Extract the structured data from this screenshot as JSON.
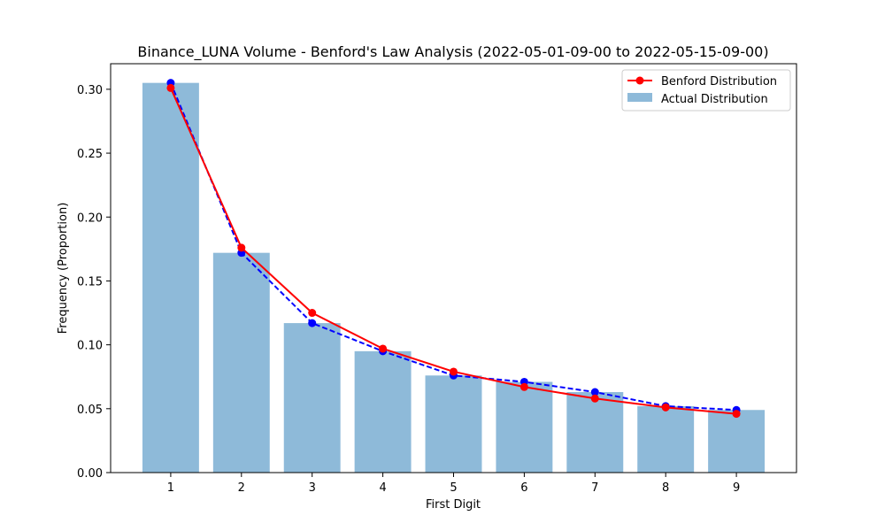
{
  "chart_data": {
    "type": "bar",
    "title": "Binance_LUNA Volume - Benford's Law Analysis (2022-05-01-09-00 to 2022-05-15-09-00)",
    "xlabel": "First Digit",
    "ylabel": "Frequency (Proportion)",
    "categories": [
      "1",
      "2",
      "3",
      "4",
      "5",
      "6",
      "7",
      "8",
      "9"
    ],
    "x": [
      1,
      2,
      3,
      4,
      5,
      6,
      7,
      8,
      9
    ],
    "xlim": [
      0.15,
      9.85
    ],
    "ylim": [
      0,
      0.32
    ],
    "yticks": [
      0.0,
      0.05,
      0.1,
      0.15,
      0.2,
      0.25,
      0.3
    ],
    "ytick_labels": [
      "0.00",
      "0.05",
      "0.10",
      "0.15",
      "0.20",
      "0.25",
      "0.30"
    ],
    "grid": false,
    "legend_position": "top-right",
    "series": [
      {
        "name": "Actual Distribution",
        "kind": "bar",
        "color": "#8ebad9",
        "values": [
          0.305,
          0.172,
          0.117,
          0.095,
          0.076,
          0.071,
          0.063,
          0.052,
          0.049
        ]
      },
      {
        "name": "Benford Distribution",
        "kind": "line",
        "color": "#ff0000",
        "marker": "circle",
        "values": [
          0.301,
          0.176,
          0.125,
          0.097,
          0.079,
          0.067,
          0.058,
          0.051,
          0.046
        ]
      },
      {
        "kind": "dashed-line",
        "color": "#0000ff",
        "marker": "circle",
        "values": [
          0.305,
          0.172,
          0.117,
          0.095,
          0.076,
          0.071,
          0.063,
          0.052,
          0.049
        ]
      }
    ]
  }
}
